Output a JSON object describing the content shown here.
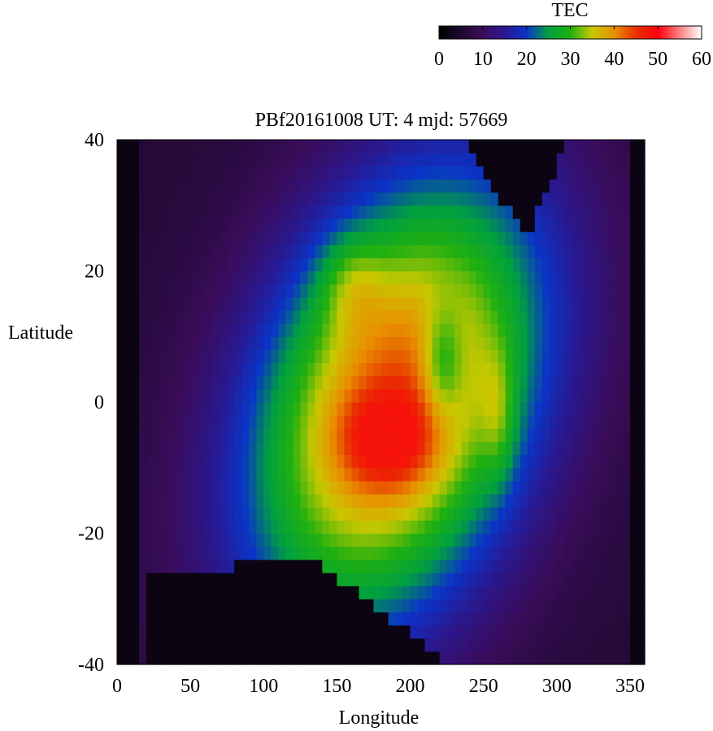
{
  "chart_data": {
    "type": "heatmap",
    "title": "PBf20161008  UT: 4  mjd: 57669",
    "xlabel": "Longitude",
    "ylabel": "Latitude",
    "xlim": [
      0,
      360
    ],
    "ylim": [
      -40,
      40
    ],
    "x_ticks": [
      "0",
      "50",
      "100",
      "150",
      "200",
      "250",
      "300",
      "350"
    ],
    "y_ticks": [
      "40",
      "20",
      "0",
      "-20",
      "-40"
    ],
    "colorbar": {
      "label": "TEC",
      "range": [
        0,
        60
      ],
      "ticks": [
        "0",
        "10",
        "20",
        "30",
        "40",
        "50",
        "60"
      ],
      "colors": [
        "#000000",
        "#1e0a2e",
        "#3a0c5a",
        "#2a1890",
        "#0a34c8",
        "#00a040",
        "#20b010",
        "#c8c800",
        "#e89000",
        "#e83000",
        "#ff0010",
        "#ff8080",
        "#ffffff"
      ]
    },
    "grid": {
      "lon_step": 5,
      "lat_step": 2,
      "description_source": "values estimated from color, in TEC units"
    },
    "features": {
      "peak_lon": 185,
      "peak_lat": -6,
      "peak_value": 44,
      "secondary_peak_lon": 160,
      "secondary_peak_lat": 18,
      "secondary_peak_value": 40,
      "dip_lon": 222,
      "dip_lat": 6,
      "dip_value": 28,
      "hot_edge_lon": 260,
      "hot_edge_lat": -2,
      "hot_edge_value": 38,
      "background_value": 2,
      "band_value": 6,
      "north_edge_at_lon_200_lat": 40,
      "south_edge_at_lon_100_lat": -24
    }
  }
}
